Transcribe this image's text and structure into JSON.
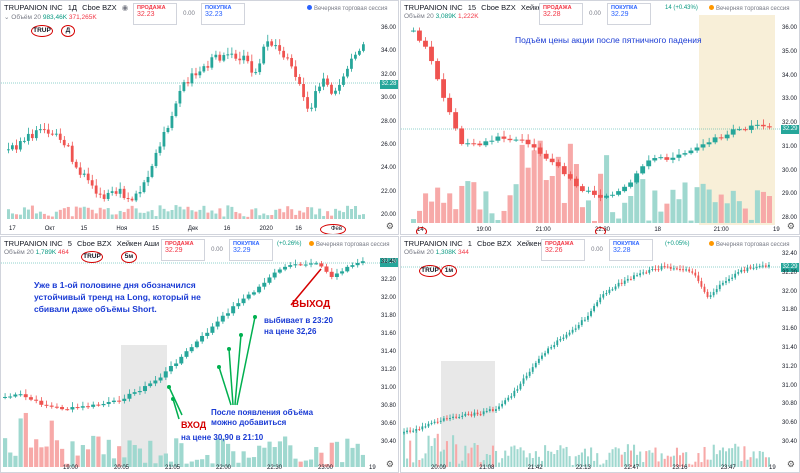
{
  "colors": {
    "up": "#26a69a",
    "down": "#ef5350",
    "vol_up": "#9fd8cf",
    "vol_down": "#f7a9a8",
    "annot_blue": "#1a3bd4",
    "annot_red": "#d50000",
    "green_arrow": "#00b050"
  },
  "panes": [
    {
      "id": "tl",
      "header": {
        "symbol": "TRUPANION INC",
        "interval": "1Д",
        "exchange": "Cboe BZX",
        "type": ""
      },
      "volume": {
        "label": "Объём 20",
        "v1": "983,46K",
        "v2": "371,265K"
      },
      "quote": {
        "sell_label": "ПРОДАЖА",
        "sell": "32.23",
        "mid": "0.00",
        "buy_label": "ПОКУПКА",
        "buy": "32.23"
      },
      "session": "Вечерняя торговая сессия",
      "yticks": [
        "36.00",
        "34.00",
        "32.00",
        "30.00",
        "28.00",
        "26.00",
        "24.00",
        "22.00",
        "20.00"
      ],
      "price_badge": "32.28",
      "xticks": [
        "17",
        "Окт",
        "15",
        "Ноя",
        "15",
        "Дек",
        "16",
        "2020",
        "16",
        "Фев"
      ],
      "circle_labels": [
        "TRUP",
        "Д"
      ],
      "ann_text": "",
      "ohlc": []
    },
    {
      "id": "tr",
      "header": {
        "symbol": "TRUPANION INC",
        "interval": "15",
        "exchange": "Cboe BZX",
        "type": "Хейкен Аши"
      },
      "volume": {
        "label": "Объём 20",
        "v1": "3,089K",
        "v2": "1,222K"
      },
      "quote": {
        "sell_label": "ПРОДАЖА",
        "sell": "32.28",
        "mid": "0.00",
        "buy_label": "ПОКУПКА",
        "buy": "32.29"
      },
      "change": "14 (+0.43%)",
      "session": "Вечерняя торговая сессия",
      "yticks": [
        "36.00",
        "35.00",
        "34.00",
        "33.00",
        "32.00",
        "31.00",
        "30.00",
        "29.00",
        "28.00"
      ],
      "price_badge": "32.29",
      "xticks": [
        "14",
        "19:00",
        "21:00",
        "22:30",
        "18",
        "21:00",
        "19"
      ],
      "ann_text": "Подъём цены акции после пятничного падения"
    },
    {
      "id": "bl",
      "header": {
        "symbol": "TRUPANION INC",
        "interval": "5",
        "exchange": "Cboe BZX",
        "type": "Хейкен Аши"
      },
      "volume": {
        "label": "Объём 20",
        "v1": "1,789K",
        "v2": "464"
      },
      "quote": {
        "sell_label": "ПРОДАЖА",
        "sell": "32.29",
        "mid": "0.00",
        "buy_label": "ПОКУПКА",
        "buy": "32.29"
      },
      "change": "(+0.26%)",
      "session": "Вечерняя торговая сессия",
      "yticks": [
        "32.40",
        "32.20",
        "32.00",
        "31.80",
        "31.60",
        "31.40",
        "31.20",
        "31.00",
        "30.80",
        "30.60",
        "30.40"
      ],
      "price_badge": "32.29",
      "xticks": [
        "19:00",
        "20:05",
        "21:05",
        "22:00",
        "22:30",
        "23:00",
        "19"
      ],
      "circle_labels": [
        "TRUP",
        "5м"
      ],
      "ann_text": "Уже в 1-ой половине дня обозначился\nустойчивый тренд на Long, который не\nсбивали даже объёмы Short.",
      "exit_title": "ВЫХОД",
      "exit_text": "выбивает в 23:20\nна цене 32,26",
      "entry_title": "ВХОД",
      "entry_text": "на цене 30,90 в 21:10",
      "add_text": "После появления объёма\nможно добавиться"
    },
    {
      "id": "br",
      "header": {
        "symbol": "TRUPANION INC",
        "interval": "1",
        "exchange": "Cboe BZX",
        "type": "Хейкен Аши"
      },
      "volume": {
        "label": "Объём 20",
        "v1": "1,308K",
        "v2": "344"
      },
      "quote": {
        "sell_label": "ПРОДАЖА",
        "sell": "32.26",
        "mid": "0.00",
        "buy_label": "ПОКУПКА",
        "buy": "32.28"
      },
      "change": "(+0.05%)",
      "session": "Вечерняя торговая сессия",
      "yticks": [
        "32.40",
        "32.20",
        "32.00",
        "31.80",
        "31.60",
        "31.40",
        "31.20",
        "31.00",
        "30.80",
        "30.60",
        "30.40"
      ],
      "price_badge": "32.29",
      "xticks": [
        "20:09",
        "21:08",
        "21:42",
        "22:13",
        "22:47",
        "23:16",
        "23:47",
        "19"
      ],
      "circle_labels": [
        "TRUP",
        "1м"
      ]
    }
  ]
}
